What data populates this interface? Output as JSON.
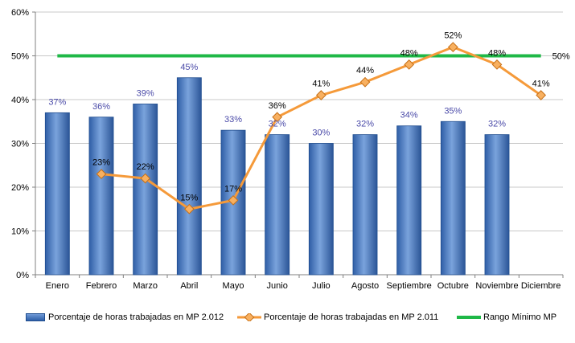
{
  "chart_data": {
    "type": "bar",
    "categories": [
      "Enero",
      "Febrero",
      "Marzo",
      "Abril",
      "Mayo",
      "Junio",
      "Julio",
      "Agosto",
      "Septiembre",
      "Octubre",
      "Noviembre",
      "Diciembre"
    ],
    "ylim": [
      0,
      60
    ],
    "yticks": [
      0,
      10,
      20,
      30,
      40,
      50,
      60
    ],
    "ytick_labels": [
      "0%",
      "10%",
      "20%",
      "30%",
      "40%",
      "50%",
      "60%"
    ],
    "series": [
      {
        "name": "Porcentaje de horas trabajadas en MP 2.012",
        "kind": "bar",
        "color": "#3d6db5",
        "values": [
          37,
          36,
          39,
          45,
          33,
          32,
          30,
          32,
          34,
          35,
          32,
          null
        ],
        "labels": [
          "37%",
          "36%",
          "39%",
          "45%",
          "33%",
          "32%",
          "30%",
          "32%",
          "34%",
          "35%",
          "32%",
          ""
        ]
      },
      {
        "name": "Porcentaje de horas trabajadas en MP 2.011",
        "kind": "line",
        "color": "#f59a3a",
        "values": [
          null,
          23,
          22,
          15,
          17,
          36,
          41,
          44,
          48,
          52,
          48,
          41
        ],
        "labels": [
          "",
          "23%",
          "22%",
          "15%",
          "17%",
          "36%",
          "41%",
          "44%",
          "48%",
          "52%",
          "48%",
          "41%"
        ]
      },
      {
        "name": "Rango Mínimo MP",
        "kind": "line",
        "color": "#1fb847",
        "values": [
          50,
          50,
          50,
          50,
          50,
          50,
          50,
          50,
          50,
          50,
          50,
          50
        ],
        "labels": [
          "50%"
        ]
      }
    ],
    "grid": true,
    "legend_position": "bottom"
  }
}
